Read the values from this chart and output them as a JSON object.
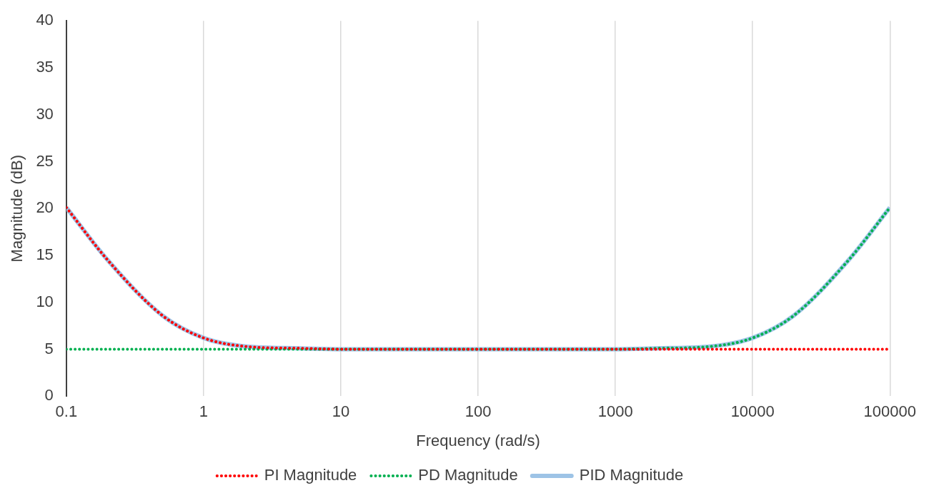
{
  "chart_data": {
    "type": "line",
    "xlabel": "Frequency (rad/s)",
    "ylabel": "Magnitude (dB)",
    "x": [
      0.1,
      0.2,
      0.5,
      1,
      2,
      5,
      10,
      100,
      1000,
      2000,
      5000,
      10000,
      20000,
      50000,
      100000
    ],
    "series": [
      {
        "name": "PI Magnitude",
        "color": "#ff0000",
        "line_style": "dotted",
        "values": [
          20.1,
          14.5,
          8.6,
          6.2,
          5.3,
          5.1,
          5,
          5,
          5,
          5,
          5,
          5,
          5,
          5,
          5
        ]
      },
      {
        "name": "PD Magnitude",
        "color": "#00b050",
        "line_style": "dotted",
        "values": [
          5,
          5,
          5,
          5,
          5,
          5,
          5,
          5,
          5,
          5.1,
          5.3,
          6.2,
          8.6,
          14.5,
          20.1
        ]
      },
      {
        "name": "PID Magnitude",
        "color": "#9dc3e6",
        "line_style": "solid",
        "values": [
          20.1,
          14.5,
          8.6,
          6.2,
          5.3,
          5.1,
          5,
          5,
          5,
          5.1,
          5.3,
          6.2,
          8.6,
          14.5,
          20.1
        ]
      }
    ],
    "log": "x",
    "xlim": [
      0.1,
      100000
    ],
    "xticks": [
      0.1,
      1,
      10,
      100,
      1000,
      10000,
      100000
    ],
    "ylim": [
      0,
      40
    ],
    "yticks": [
      0,
      5,
      10,
      15,
      20,
      25,
      30,
      35,
      40
    ],
    "grid": "x",
    "legend": "bottom",
    "marker": "none"
  }
}
